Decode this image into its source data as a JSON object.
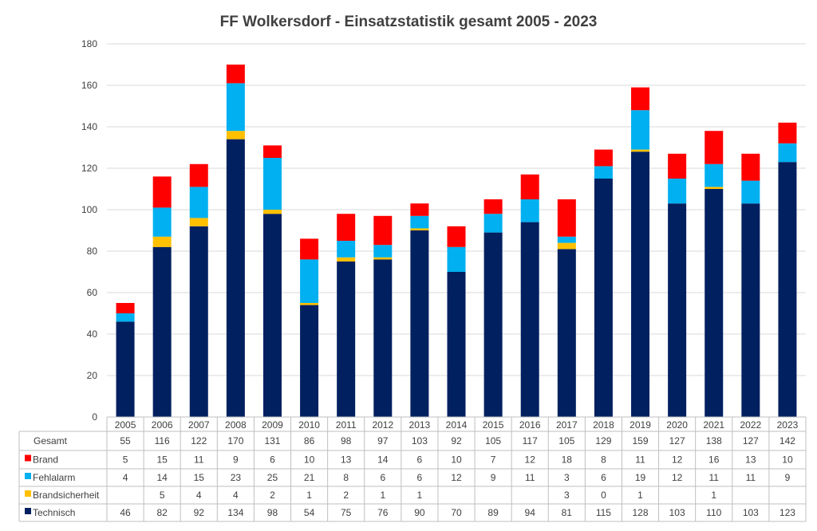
{
  "chart_data": {
    "type": "bar",
    "stacked": true,
    "title": "FF Wolkersdorf - Einsatzstatistik gesamt 2005 - 2023",
    "categories": [
      "2005",
      "2006",
      "2007",
      "2008",
      "2009",
      "2010",
      "2011",
      "2012",
      "2013",
      "2014",
      "2015",
      "2016",
      "2017",
      "2018",
      "2019",
      "2020",
      "2021",
      "2022",
      "2023"
    ],
    "ylim": [
      0,
      180
    ],
    "yticks": [
      0,
      20,
      40,
      60,
      80,
      100,
      120,
      140,
      160,
      180
    ],
    "grid": true,
    "legend": "table-below",
    "series": [
      {
        "name": "Technisch",
        "color": "#002060",
        "values": [
          46,
          82,
          92,
          134,
          98,
          54,
          75,
          76,
          90,
          70,
          89,
          94,
          81,
          115,
          128,
          103,
          110,
          103,
          123
        ],
        "labels": [
          "46",
          "82",
          "92",
          "134",
          "98",
          "54",
          "75",
          "76",
          "90",
          "70",
          "89",
          "94",
          "81",
          "115",
          "128",
          "103",
          "110",
          "103",
          "123"
        ]
      },
      {
        "name": "Brandsicherheit",
        "color": "#FFC000",
        "values": [
          0,
          5,
          4,
          4,
          2,
          1,
          2,
          1,
          1,
          0,
          0,
          0,
          3,
          0,
          1,
          0,
          1,
          0,
          0
        ],
        "labels": [
          "",
          "5",
          "4",
          "4",
          "2",
          "1",
          "2",
          "1",
          "1",
          "",
          "",
          "",
          "3",
          "0",
          "1",
          "",
          "1",
          "",
          ""
        ]
      },
      {
        "name": "Fehlalarm",
        "color": "#00B0F0",
        "values": [
          4,
          14,
          15,
          23,
          25,
          21,
          8,
          6,
          6,
          12,
          9,
          11,
          3,
          6,
          19,
          12,
          11,
          11,
          9
        ],
        "labels": [
          "4",
          "14",
          "15",
          "23",
          "25",
          "21",
          "8",
          "6",
          "6",
          "12",
          "9",
          "11",
          "3",
          "6",
          "19",
          "12",
          "11",
          "11",
          "9"
        ]
      },
      {
        "name": "Brand",
        "color": "#FF0000",
        "values": [
          5,
          15,
          11,
          9,
          6,
          10,
          13,
          14,
          6,
          10,
          7,
          12,
          18,
          8,
          11,
          12,
          16,
          13,
          10
        ],
        "labels": [
          "5",
          "15",
          "11",
          "9",
          "6",
          "10",
          "13",
          "14",
          "6",
          "10",
          "7",
          "12",
          "18",
          "8",
          "11",
          "12",
          "16",
          "13",
          "10"
        ]
      }
    ],
    "table_rows": [
      {
        "name": "Gesamt",
        "series": null,
        "labels": [
          "55",
          "116",
          "122",
          "170",
          "131",
          "86",
          "98",
          "97",
          "103",
          "92",
          "105",
          "117",
          "105",
          "129",
          "159",
          "127",
          "138",
          "127",
          "142"
        ]
      },
      {
        "name": "Brand",
        "series": 3
      },
      {
        "name": "Fehlalarm",
        "series": 2
      },
      {
        "name": "Brandsicherheit",
        "series": 1
      },
      {
        "name": "Technisch",
        "series": 0
      }
    ]
  }
}
